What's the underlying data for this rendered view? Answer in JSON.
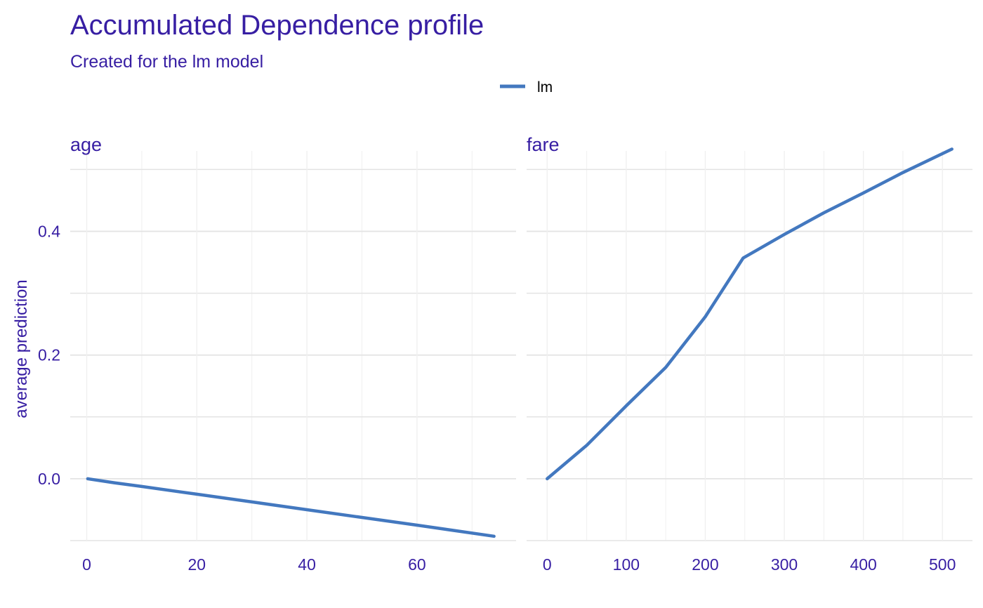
{
  "chart_data": {
    "type": "line",
    "title": "Accumulated Dependence profile",
    "subtitle": "Created for the lm model",
    "ylabel": "average prediction",
    "legend": {
      "position": "top",
      "entries": [
        {
          "name": "lm",
          "color": "#4378bf"
        }
      ]
    },
    "grid": true,
    "ylim": [
      -0.1,
      0.53
    ],
    "y_ticks": [
      0.0,
      0.2,
      0.4
    ],
    "y_tick_labels": [
      "0.0",
      "0.2",
      "0.4"
    ],
    "panels": [
      {
        "name": "age",
        "xlim": [
          -3,
          78
        ],
        "x_ticks": [
          0,
          20,
          40,
          60
        ],
        "x_tick_labels": [
          "0",
          "20",
          "40",
          "60"
        ],
        "series": [
          {
            "name": "lm",
            "color": "#4378bf",
            "x": [
              0.17,
              5,
              10,
              20,
              30,
              40,
              50,
              60,
              74
            ],
            "y": [
              0.0,
              -0.0065,
              -0.0125,
              -0.025,
              -0.0375,
              -0.05,
              -0.0625,
              -0.075,
              -0.093
            ]
          }
        ]
      },
      {
        "name": "fare",
        "xlim": [
          -26,
          538
        ],
        "x_ticks": [
          0,
          100,
          200,
          300,
          400,
          500
        ],
        "x_tick_labels": [
          "0",
          "100",
          "200",
          "300",
          "400",
          "500"
        ],
        "series": [
          {
            "name": "lm",
            "color": "#4378bf",
            "x": [
              0,
              50,
              100,
              150,
              200,
              248,
              300,
              350,
              400,
              450,
              512
            ],
            "y": [
              0.0,
              0.054,
              0.118,
              0.18,
              0.262,
              0.357,
              0.395,
              0.43,
              0.462,
              0.495,
              0.533
            ]
          }
        ]
      }
    ]
  },
  "colors": {
    "text": "#371ea3",
    "line": "#4378bf",
    "grid": "#e3e3e3",
    "grid_minor": "#f0f0f0"
  }
}
